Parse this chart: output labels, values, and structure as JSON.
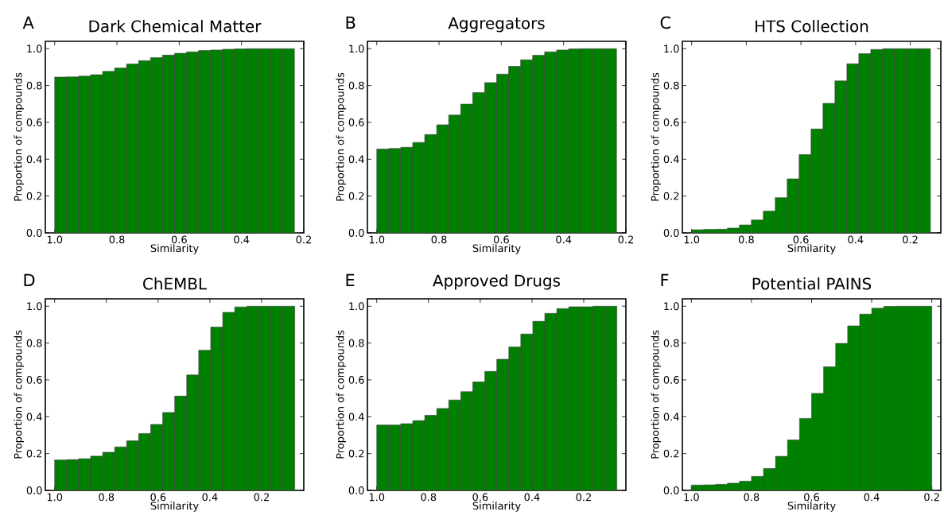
{
  "chart_data": [
    {
      "type": "histogram",
      "title": "Dark Chemical Matter",
      "annotations": [
        "A"
      ],
      "xlabel": "Similarity",
      "ylabel": "Proportion of compounds",
      "color": "#008000",
      "bins": [
        1.0,
        0.9615,
        0.923,
        0.8845,
        0.846,
        0.8075,
        0.769,
        0.7305,
        0.692,
        0.6535,
        0.615,
        0.5765,
        0.538,
        0.4995,
        0.461,
        0.4225,
        0.384,
        0.3455,
        0.307,
        0.2685,
        0.23
      ],
      "values": [
        0.846,
        0.847,
        0.851,
        0.859,
        0.877,
        0.895,
        0.917,
        0.935,
        0.951,
        0.965,
        0.975,
        0.983,
        0.99,
        0.993,
        0.997,
        0.999,
        1.0,
        1.0,
        1.0,
        1.0
      ],
      "xlim": [
        1.03,
        0.2
      ],
      "ylim": [
        0,
        1.04
      ],
      "xticks": [
        {
          "value": 1.0,
          "label": "1.0"
        },
        {
          "value": 0.8,
          "label": "0.8"
        },
        {
          "value": 0.6,
          "label": "0.6"
        },
        {
          "value": 0.4,
          "label": "0.4"
        },
        {
          "value": 0.2,
          "label": "0.2"
        }
      ],
      "yticks": [
        {
          "value": 0,
          "label": "0.0"
        },
        {
          "value": 0.2,
          "label": "0.2"
        },
        {
          "value": 0.4,
          "label": "0.4"
        },
        {
          "value": 0.6,
          "label": "0.6"
        },
        {
          "value": 0.8,
          "label": "0.8"
        },
        {
          "value": 1.0,
          "label": "1.0"
        }
      ]
    },
    {
      "type": "histogram",
      "title": "Aggregators",
      "annotations": [
        "B"
      ],
      "xlabel": "Similarity",
      "ylabel": "Proportion of compounds",
      "color": "#008000",
      "bins": [
        1.0,
        0.9615,
        0.923,
        0.8845,
        0.846,
        0.8075,
        0.769,
        0.7305,
        0.692,
        0.6535,
        0.615,
        0.5765,
        0.538,
        0.4995,
        0.461,
        0.4225,
        0.384,
        0.3455,
        0.307,
        0.2685,
        0.23
      ],
      "values": [
        0.455,
        0.458,
        0.465,
        0.491,
        0.534,
        0.587,
        0.64,
        0.699,
        0.762,
        0.816,
        0.862,
        0.904,
        0.94,
        0.964,
        0.983,
        0.993,
        0.999,
        1.0,
        1.0,
        1.0
      ],
      "xlim": [
        1.03,
        0.2
      ],
      "ylim": [
        0,
        1.04
      ],
      "xticks": [
        {
          "value": 1.0,
          "label": "1.0"
        },
        {
          "value": 0.8,
          "label": "0.8"
        },
        {
          "value": 0.6,
          "label": "0.6"
        },
        {
          "value": 0.4,
          "label": "0.4"
        },
        {
          "value": 0.2,
          "label": "0.2"
        }
      ],
      "yticks": [
        {
          "value": 0,
          "label": "0.0"
        },
        {
          "value": 0.2,
          "label": "0.2"
        },
        {
          "value": 0.4,
          "label": "0.4"
        },
        {
          "value": 0.6,
          "label": "0.6"
        },
        {
          "value": 0.8,
          "label": "0.8"
        },
        {
          "value": 1.0,
          "label": "1.0"
        }
      ]
    },
    {
      "type": "histogram",
      "title": "HTS Collection",
      "annotations": [
        "C"
      ],
      "xlabel": "Similarity",
      "ylabel": "Proportion of compounds",
      "color": "#008000",
      "bins": [
        1.0,
        0.9563,
        0.9126,
        0.8689,
        0.8252,
        0.7815,
        0.7378,
        0.6941,
        0.6504,
        0.6067,
        0.563,
        0.5193,
        0.4756,
        0.4319,
        0.3882,
        0.3445,
        0.3008,
        0.2571,
        0.2134,
        0.1697,
        0.126
      ],
      "values": [
        0.017,
        0.019,
        0.02,
        0.026,
        0.043,
        0.07,
        0.118,
        0.191,
        0.293,
        0.425,
        0.564,
        0.703,
        0.825,
        0.918,
        0.973,
        0.996,
        1.0,
        1.0,
        1.0,
        1.0
      ],
      "xlim": [
        1.034,
        0.088
      ],
      "ylim": [
        0,
        1.04
      ],
      "xticks": [
        {
          "value": 1.0,
          "label": "1.0"
        },
        {
          "value": 0.8,
          "label": "0.8"
        },
        {
          "value": 0.6,
          "label": "0.6"
        },
        {
          "value": 0.4,
          "label": "0.4"
        },
        {
          "value": 0.2,
          "label": "0.2"
        }
      ],
      "yticks": [
        {
          "value": 0,
          "label": "0.0"
        },
        {
          "value": 0.2,
          "label": "0.2"
        },
        {
          "value": 0.4,
          "label": "0.4"
        },
        {
          "value": 0.6,
          "label": "0.6"
        },
        {
          "value": 0.8,
          "label": "0.8"
        },
        {
          "value": 1.0,
          "label": "1.0"
        }
      ]
    },
    {
      "type": "histogram",
      "title": "ChEMBL",
      "annotations": [
        "D"
      ],
      "xlabel": "Similarity",
      "ylabel": "Proportion of compounds",
      "color": "#008000",
      "bins": [
        1.0,
        0.9536,
        0.9072,
        0.8608,
        0.8144,
        0.768,
        0.7216,
        0.6752,
        0.6288,
        0.5824,
        0.536,
        0.4896,
        0.4432,
        0.3968,
        0.3504,
        0.304,
        0.2576,
        0.2112,
        0.1648,
        0.1184,
        0.072
      ],
      "values": [
        0.165,
        0.167,
        0.172,
        0.186,
        0.207,
        0.236,
        0.269,
        0.309,
        0.358,
        0.423,
        0.512,
        0.627,
        0.761,
        0.887,
        0.967,
        0.996,
        1.0,
        1.0,
        1.0,
        1.0
      ],
      "xlim": [
        1.036,
        0.037
      ],
      "ylim": [
        0,
        1.04
      ],
      "xticks": [
        {
          "value": 1.0,
          "label": "1.0"
        },
        {
          "value": 0.8,
          "label": "0.8"
        },
        {
          "value": 0.6,
          "label": "0.6"
        },
        {
          "value": 0.4,
          "label": "0.4"
        },
        {
          "value": 0.2,
          "label": "0.2"
        }
      ],
      "yticks": [
        {
          "value": 0,
          "label": "0.0"
        },
        {
          "value": 0.2,
          "label": "0.2"
        },
        {
          "value": 0.4,
          "label": "0.4"
        },
        {
          "value": 0.6,
          "label": "0.6"
        },
        {
          "value": 0.8,
          "label": "0.8"
        },
        {
          "value": 1.0,
          "label": "1.0"
        }
      ]
    },
    {
      "type": "histogram",
      "title": "Approved Drugs",
      "annotations": [
        "E"
      ],
      "xlabel": "Similarity",
      "ylabel": "Proportion of compounds",
      "color": "#008000",
      "bins": [
        1.0,
        0.9536,
        0.9072,
        0.8608,
        0.8144,
        0.768,
        0.7216,
        0.6752,
        0.6288,
        0.5824,
        0.536,
        0.4896,
        0.4432,
        0.3968,
        0.3504,
        0.304,
        0.2576,
        0.2112,
        0.1648,
        0.1184,
        0.072
      ],
      "values": [
        0.355,
        0.355,
        0.362,
        0.379,
        0.408,
        0.445,
        0.491,
        0.536,
        0.589,
        0.646,
        0.712,
        0.779,
        0.849,
        0.918,
        0.961,
        0.987,
        0.997,
        0.997,
        1.0,
        1.0
      ],
      "xlim": [
        1.036,
        0.037
      ],
      "ylim": [
        0,
        1.04
      ],
      "xticks": [
        {
          "value": 1.0,
          "label": "1.0"
        },
        {
          "value": 0.8,
          "label": "0.8"
        },
        {
          "value": 0.6,
          "label": "0.6"
        },
        {
          "value": 0.4,
          "label": "0.4"
        },
        {
          "value": 0.2,
          "label": "0.2"
        }
      ],
      "yticks": [
        {
          "value": 0,
          "label": "0.0"
        },
        {
          "value": 0.2,
          "label": "0.2"
        },
        {
          "value": 0.4,
          "label": "0.4"
        },
        {
          "value": 0.6,
          "label": "0.6"
        },
        {
          "value": 0.8,
          "label": "0.8"
        },
        {
          "value": 1.0,
          "label": "1.0"
        }
      ]
    },
    {
      "type": "histogram",
      "title": "Potential PAINS",
      "annotations": [
        "F"
      ],
      "xlabel": "Similarity",
      "ylabel": "Proportion of compounds",
      "color": "#008000",
      "bins": [
        1.0,
        0.96,
        0.92,
        0.88,
        0.84,
        0.8,
        0.76,
        0.72,
        0.68,
        0.64,
        0.6,
        0.56,
        0.52,
        0.48,
        0.44,
        0.4,
        0.36,
        0.32,
        0.28,
        0.24,
        0.2
      ],
      "values": [
        0.029,
        0.03,
        0.033,
        0.039,
        0.05,
        0.076,
        0.119,
        0.185,
        0.274,
        0.391,
        0.527,
        0.671,
        0.798,
        0.893,
        0.957,
        0.989,
        0.999,
        1.0,
        1.0,
        1.0
      ],
      "xlim": [
        1.03,
        0.17
      ],
      "ylim": [
        0,
        1.04
      ],
      "xticks": [
        {
          "value": 1.0,
          "label": "1.0"
        },
        {
          "value": 0.8,
          "label": "0.8"
        },
        {
          "value": 0.6,
          "label": "0.6"
        },
        {
          "value": 0.4,
          "label": "0.4"
        },
        {
          "value": 0.2,
          "label": "0.2"
        }
      ],
      "yticks": [
        {
          "value": 0,
          "label": "0.0"
        },
        {
          "value": 0.2,
          "label": "0.2"
        },
        {
          "value": 0.4,
          "label": "0.4"
        },
        {
          "value": 0.6,
          "label": "0.6"
        },
        {
          "value": 0.8,
          "label": "0.8"
        },
        {
          "value": 1.0,
          "label": "1.0"
        }
      ]
    }
  ]
}
